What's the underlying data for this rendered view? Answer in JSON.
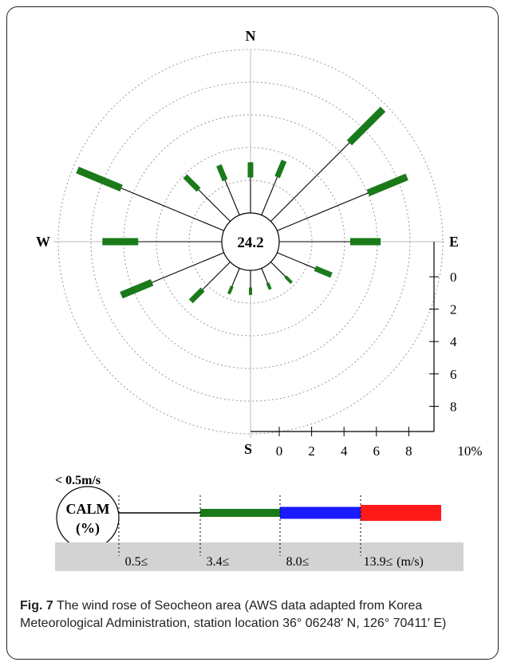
{
  "chart_data": {
    "type": "wind-rose",
    "calm_percent": "24.2",
    "directions": [
      "N",
      "NNE",
      "NE",
      "ENE",
      "E",
      "ESE",
      "SE",
      "SSE",
      "S",
      "SSW",
      "SW",
      "WSW",
      "W",
      "WNW",
      "NW",
      "NNW"
    ],
    "frequency_percent": [
      3.1,
      3.6,
      9.7,
      8.6,
      6.2,
      3.6,
      1.8,
      1.4,
      1.5,
      1.7,
      3.4,
      6.8,
      7.3,
      9.7,
      3.9,
      3.3
    ],
    "speed_classes": [
      {
        "label": "0.5≤",
        "color": "#000000"
      },
      {
        "label": "3.4≤",
        "color": "#1a7a1a"
      },
      {
        "label": "8.0≤",
        "color": "#1a1aff"
      },
      {
        "label": "13.9≤",
        "color": "#ff1a1a"
      }
    ],
    "speed_unit": "(m/s)",
    "calm_threshold": "< 0.5m/s",
    "calm_label_1": "CALM",
    "calm_label_2": "(%)",
    "axis_ticks": [
      "0",
      "2",
      "4",
      "6",
      "8"
    ],
    "axis_unit": "10%",
    "compass": {
      "n": "N",
      "e": "E",
      "s": "S",
      "w": "W"
    },
    "grid": true
  },
  "caption": {
    "figure_label": "Fig. 7",
    "text": " The wind rose of Seocheon area (AWS data adapted from Korea Meteorological Administration, station location 36° 06248′ N, 126° 70411′ E)"
  }
}
